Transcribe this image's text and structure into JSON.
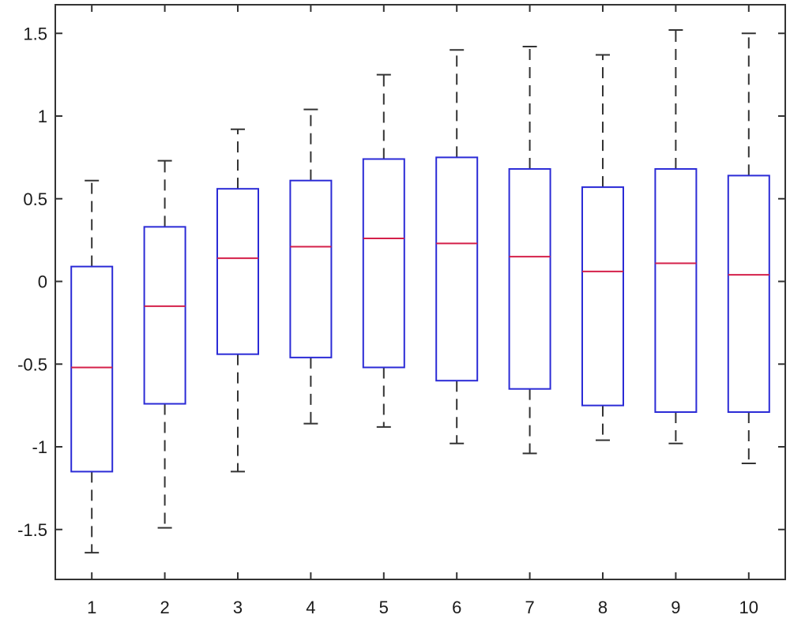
{
  "chart_data": {
    "type": "boxplot",
    "title": "",
    "xlabel": "",
    "ylabel": "",
    "categories": [
      "1",
      "2",
      "3",
      "4",
      "5",
      "6",
      "7",
      "8",
      "9",
      "10"
    ],
    "y_ticks": [
      "-1.5",
      "-1",
      "-0.5",
      "0",
      "0.5",
      "1",
      "1.5"
    ],
    "ylim": [
      -1.8,
      1.7
    ],
    "grid": false,
    "boxes": [
      {
        "category": "1",
        "whisker_low": -1.64,
        "q1": -1.15,
        "median": -0.52,
        "q3": 0.09,
        "whisker_high": 0.61
      },
      {
        "category": "2",
        "whisker_low": -1.49,
        "q1": -0.74,
        "median": -0.15,
        "q3": 0.33,
        "whisker_high": 0.73
      },
      {
        "category": "3",
        "whisker_low": -1.15,
        "q1": -0.44,
        "median": 0.14,
        "q3": 0.56,
        "whisker_high": 0.92
      },
      {
        "category": "4",
        "whisker_low": -0.86,
        "q1": -0.46,
        "median": 0.21,
        "q3": 0.61,
        "whisker_high": 1.04
      },
      {
        "category": "5",
        "whisker_low": -0.88,
        "q1": -0.52,
        "median": 0.26,
        "q3": 0.74,
        "whisker_high": 1.25
      },
      {
        "category": "6",
        "whisker_low": -0.98,
        "q1": -0.6,
        "median": 0.23,
        "q3": 0.75,
        "whisker_high": 1.4
      },
      {
        "category": "7",
        "whisker_low": -1.04,
        "q1": -0.65,
        "median": 0.15,
        "q3": 0.68,
        "whisker_high": 1.42
      },
      {
        "category": "8",
        "whisker_low": -0.96,
        "q1": -0.75,
        "median": 0.06,
        "q3": 0.57,
        "whisker_high": 1.37
      },
      {
        "category": "9",
        "whisker_low": -0.98,
        "q1": -0.79,
        "median": 0.11,
        "q3": 0.68,
        "whisker_high": 1.52
      },
      {
        "category": "10",
        "whisker_low": -1.1,
        "q1": -0.79,
        "median": 0.04,
        "q3": 0.64,
        "whisker_high": 1.5
      }
    ],
    "colors": {
      "box": "#2b2bd6",
      "median": "#d4204a",
      "whisker": "#333333",
      "axis": "#333333"
    }
  }
}
